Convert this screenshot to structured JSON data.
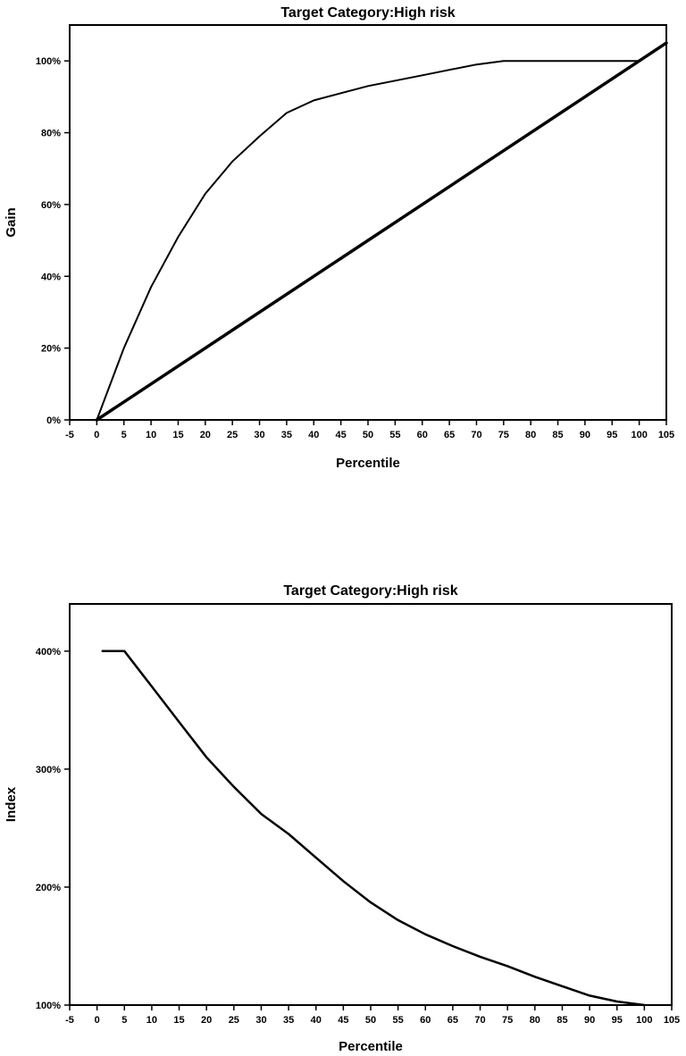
{
  "chart_data": [
    {
      "type": "line",
      "title": "Target Category:High risk",
      "xlabel": "Percentile",
      "ylabel": "Gain",
      "xlim": [
        -5,
        105
      ],
      "ylim": [
        0,
        110
      ],
      "x_ticks": [
        -5,
        0,
        5,
        10,
        15,
        20,
        25,
        30,
        35,
        40,
        45,
        50,
        55,
        60,
        65,
        70,
        75,
        80,
        85,
        90,
        95,
        100,
        105
      ],
      "y_ticks": [
        0,
        20,
        40,
        60,
        80,
        100
      ],
      "y_tick_labels": [
        "0%",
        "20%",
        "40%",
        "60%",
        "80%",
        "100%"
      ],
      "grid": false,
      "series": [
        {
          "x": [
            0,
            5,
            10,
            15,
            20,
            25,
            30,
            35,
            40,
            45,
            50,
            55,
            60,
            65,
            70,
            75,
            80,
            85,
            90,
            95,
            100
          ],
          "y": [
            0,
            20,
            37,
            51,
            63,
            72,
            79,
            85.5,
            89,
            91,
            93,
            94.5,
            96,
            97.5,
            99,
            100,
            100,
            100,
            100,
            100,
            100
          ],
          "stroke": 2
        },
        {
          "x": [
            0,
            105
          ],
          "y": [
            0,
            105
          ],
          "stroke": 3.5
        }
      ]
    },
    {
      "type": "line",
      "title": "Target Category:High risk",
      "xlabel": "Percentile",
      "ylabel": "Index",
      "xlim": [
        -5,
        105
      ],
      "ylim": [
        100,
        440
      ],
      "x_ticks": [
        -5,
        0,
        5,
        10,
        15,
        20,
        25,
        30,
        35,
        40,
        45,
        50,
        55,
        60,
        65,
        70,
        75,
        80,
        85,
        90,
        95,
        100,
        105
      ],
      "y_ticks": [
        100,
        200,
        300,
        400
      ],
      "y_tick_labels": [
        "100%",
        "200%",
        "300%",
        "400%"
      ],
      "grid": false,
      "series": [
        {
          "x": [
            1,
            5,
            10,
            15,
            20,
            25,
            30,
            35,
            40,
            45,
            50,
            55,
            60,
            65,
            70,
            75,
            80,
            85,
            90,
            95,
            100
          ],
          "y": [
            400,
            400,
            370,
            340,
            310,
            285,
            262,
            245,
            225,
            205,
            187,
            172,
            160,
            150,
            141,
            133,
            124,
            116,
            108,
            103,
            100
          ],
          "stroke": 2.5
        }
      ]
    }
  ]
}
